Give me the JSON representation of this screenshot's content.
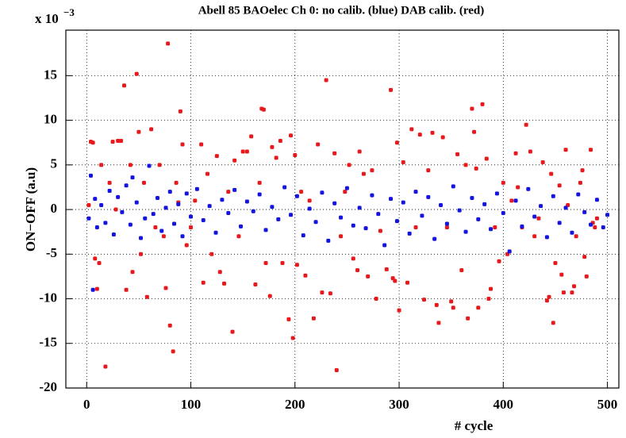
{
  "chart_data": {
    "type": "scatter",
    "title": "Abell 85 BAOelec Ch 0: no calib. (blue) DAB calib. (red)",
    "y_label": "ON−OFF (a.u)",
    "x_label": "# cycle",
    "exponent_base": "x 10",
    "exponent_power": "−3",
    "xlim": [
      -20,
      511
    ],
    "ylim": [
      -20,
      20.1
    ],
    "xticks": [
      0,
      100,
      200,
      300,
      400,
      500
    ],
    "yticks": [
      -20,
      -15,
      -10,
      -5,
      0,
      5,
      10,
      15
    ],
    "grid": true,
    "series": [
      {
        "name": "DAB calib.",
        "color": "#e8191c",
        "x": [
          2,
          4,
          6,
          8,
          10,
          12,
          14,
          18,
          22,
          25,
          28,
          30,
          33,
          36,
          38,
          42,
          44,
          48,
          50,
          52,
          55,
          58,
          62,
          66,
          70,
          74,
          76,
          78,
          80,
          83,
          86,
          88,
          90,
          92,
          96,
          100,
          104,
          110,
          112,
          116,
          120,
          125,
          128,
          132,
          136,
          140,
          142,
          146,
          150,
          154,
          158,
          162,
          166,
          168,
          170,
          172,
          176,
          178,
          182,
          186,
          188,
          194,
          196,
          198,
          200,
          202,
          206,
          210,
          214,
          218,
          222,
          226,
          230,
          234,
          238,
          240,
          244,
          248,
          252,
          256,
          260,
          262,
          266,
          270,
          274,
          278,
          282,
          288,
          292,
          294,
          296,
          298,
          300,
          304,
          308,
          312,
          316,
          320,
          324,
          328,
          332,
          336,
          338,
          342,
          346,
          350,
          352,
          356,
          360,
          364,
          366,
          370,
          372,
          374,
          376,
          380,
          384,
          386,
          388,
          392,
          396,
          400,
          404,
          408,
          412,
          414,
          418,
          422,
          426,
          430,
          434,
          438,
          442,
          444,
          446,
          448,
          450,
          454,
          456,
          458,
          460,
          462,
          466,
          468,
          470,
          474,
          476,
          478,
          480,
          484,
          486,
          488,
          490
        ],
        "values": [
          0.5,
          7.6,
          7.5,
          -5.5,
          -8.9,
          -6,
          5,
          -17.6,
          3,
          7.6,
          0,
          7.7,
          7.7,
          13.9,
          -9,
          5,
          -7,
          15.2,
          8.7,
          -5,
          3,
          -9.8,
          9,
          -2,
          5,
          -3,
          -8.8,
          18.6,
          -13,
          -15.9,
          3,
          0.8,
          11,
          7.3,
          -4,
          -2,
          1,
          7.3,
          -8.2,
          4,
          -5,
          6,
          -7,
          -8.3,
          2,
          -13.7,
          5.5,
          -3,
          6.5,
          6.5,
          8.2,
          -8.4,
          3,
          11.3,
          11.2,
          -6,
          -9.7,
          7,
          5.8,
          7.7,
          -6,
          -12.3,
          8.3,
          -14.4,
          6.1,
          -6.2,
          2,
          -7.4,
          1,
          -12.2,
          7.3,
          -9.3,
          14.5,
          -9.4,
          6.3,
          -18,
          -3,
          2,
          5,
          -5.5,
          -6.8,
          6.5,
          4,
          -7.5,
          4.4,
          -10,
          -2.4,
          -6.7,
          13.4,
          -7.7,
          -8,
          7.5,
          -11.3,
          5.3,
          -8.2,
          9,
          -2,
          8.4,
          -10.1,
          4.4,
          8.6,
          -10.7,
          -12.7,
          8.1,
          -2,
          -10.3,
          -11,
          6.2,
          -6.8,
          5,
          -12.2,
          11.3,
          8.7,
          4.6,
          -11,
          11.8,
          5.7,
          -10,
          -8.9,
          -2,
          -5.8,
          3,
          -5,
          1,
          6.3,
          2.5,
          -2,
          9.5,
          6.5,
          -3,
          -1,
          5.3,
          -10.2,
          -9.8,
          4,
          -12.7,
          -6,
          2.7,
          -7.3,
          -9.3,
          6.7,
          0.5,
          -9.3,
          -8.6,
          -3,
          3,
          4.4,
          -5.3,
          -7.5,
          6.7,
          -1.5,
          -2,
          -1
        ]
      },
      {
        "name": "no calib.",
        "color": "#1414e0",
        "x": [
          2,
          4,
          6,
          8,
          10,
          14,
          18,
          22,
          26,
          30,
          34,
          38,
          42,
          44,
          48,
          52,
          56,
          60,
          64,
          68,
          72,
          76,
          80,
          84,
          88,
          92,
          96,
          100,
          106,
          112,
          118,
          124,
          130,
          136,
          142,
          148,
          154,
          160,
          166,
          172,
          178,
          184,
          190,
          196,
          202,
          208,
          214,
          220,
          226,
          232,
          238,
          244,
          250,
          256,
          262,
          268,
          274,
          280,
          286,
          292,
          298,
          304,
          310,
          316,
          322,
          328,
          334,
          340,
          346,
          352,
          358,
          364,
          370,
          376,
          382,
          388,
          394,
          400,
          406,
          412,
          418,
          424,
          430,
          436,
          442,
          448,
          454,
          460,
          466,
          472,
          478,
          484,
          490,
          496,
          500
        ],
        "values": [
          -1,
          3.8,
          -9,
          1.2,
          -2,
          0.5,
          -1.5,
          2.1,
          -2.8,
          1.4,
          -0.3,
          2.7,
          -1.7,
          3.6,
          0.8,
          -3.2,
          -1,
          4.9,
          -0.5,
          1.3,
          -2.4,
          0.2,
          2,
          -1.6,
          0.6,
          -3,
          1.8,
          -0.8,
          2.3,
          -1.2,
          0.4,
          -2.6,
          1.1,
          -0.4,
          2.2,
          -1.9,
          0.9,
          -0.2,
          1.7,
          -2.3,
          0.3,
          -1.1,
          2.5,
          -0.6,
          1.5,
          -2.9,
          0.1,
          -1.4,
          1.9,
          -3.5,
          0.7,
          -0.9,
          2.4,
          -1.8,
          0.2,
          -2.1,
          1.6,
          -0.5,
          -4,
          1.2,
          -1.3,
          0.8,
          -2.7,
          2,
          -0.7,
          1.4,
          -3.3,
          0.5,
          -1.6,
          2.6,
          -0.1,
          -2.5,
          1.3,
          -1.1,
          0.6,
          -2.2,
          1.8,
          -0.4,
          -4.7,
          1,
          -1.9,
          2.3,
          -0.8,
          0.4,
          -3.1,
          1.5,
          -1.5,
          0.2,
          -2.6,
          1.7,
          -0.3,
          -1.7,
          1.1,
          -2,
          -0.6
        ]
      }
    ]
  }
}
